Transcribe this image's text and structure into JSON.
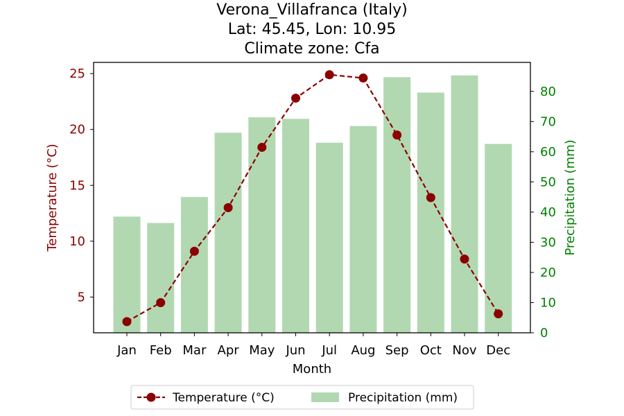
{
  "chart_data": {
    "type": "bar+line",
    "title_lines": [
      "Verona_Villafranca (Italy)",
      "Lat: 45.45, Lon: 10.95",
      "Climate zone: Cfa"
    ],
    "xlabel": "Month",
    "categories": [
      "Jan",
      "Feb",
      "Mar",
      "Apr",
      "May",
      "Jun",
      "Jul",
      "Aug",
      "Sep",
      "Oct",
      "Nov",
      "Dec"
    ],
    "temperature": {
      "name": "Temperature (°C)",
      "axis_label": "Temperature (°C)",
      "color": "#8b0000",
      "values": [
        2.8,
        4.5,
        9.1,
        13.0,
        18.4,
        22.8,
        24.9,
        24.6,
        19.5,
        13.9,
        8.4,
        3.5
      ],
      "ylim": [
        1.8,
        26.0
      ],
      "ticks": [
        5,
        10,
        15,
        20,
        25
      ]
    },
    "precipitation": {
      "name": "Precipitation (mm)",
      "axis_label": "Precipitation (mm)",
      "color": "#008000",
      "bar_color": "#b2d8b2",
      "values": [
        38.5,
        36.4,
        45.0,
        66.3,
        71.4,
        70.9,
        63.0,
        68.5,
        84.7,
        79.6,
        85.3,
        62.6
      ],
      "ylim": [
        0,
        89.6
      ],
      "ticks": [
        0,
        10,
        20,
        30,
        40,
        50,
        60,
        70,
        80
      ]
    },
    "legend_position": "bottom-center",
    "grid": false
  }
}
